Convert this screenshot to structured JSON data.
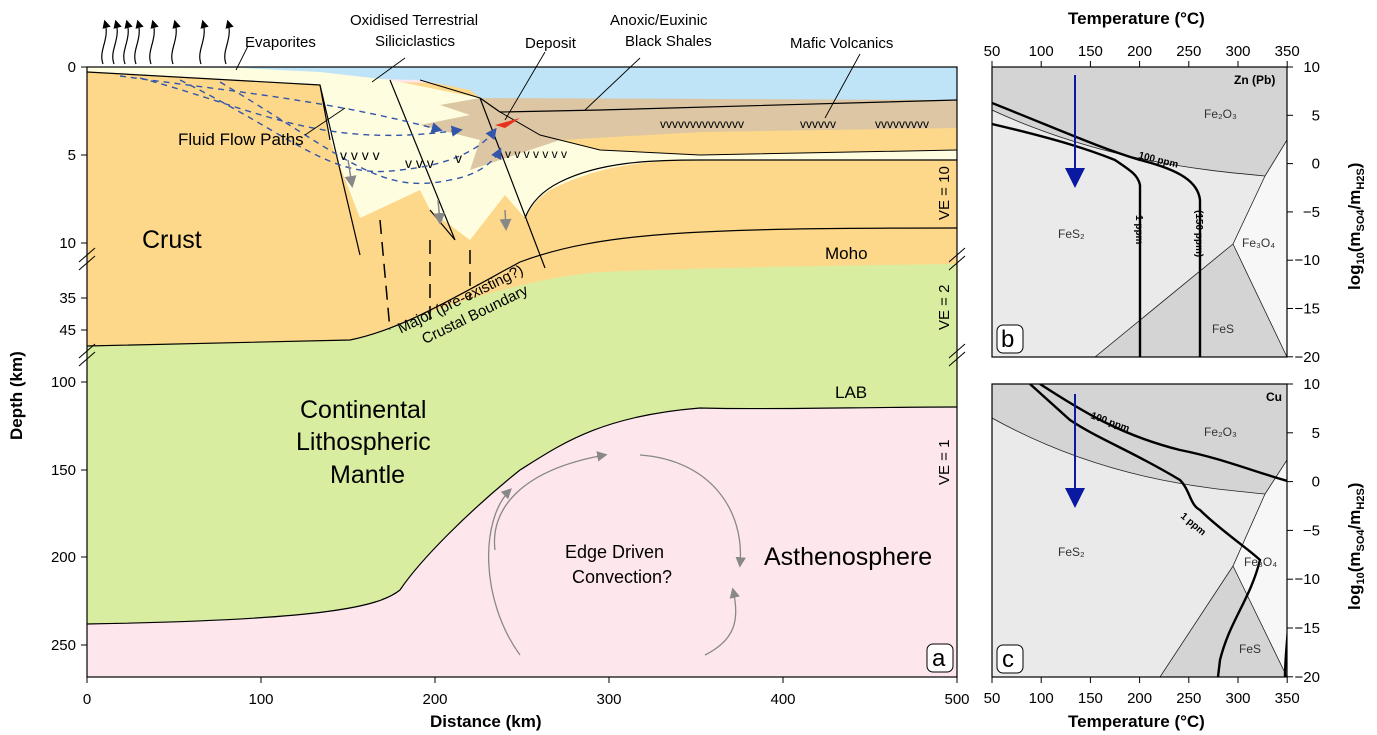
{
  "panel_a": {
    "panel_label": "a",
    "x_axis": {
      "label": "Distance (km)",
      "ticks": [
        "0",
        "100",
        "200",
        "300",
        "400",
        "500"
      ]
    },
    "y_axis": {
      "label": "Depth (km)",
      "ticks": [
        "0",
        "5",
        "10",
        "35",
        "45",
        "100",
        "150",
        "200",
        "250"
      ]
    },
    "labels": {
      "evaporites": "Evaporites",
      "oxidised_line1": "Oxidised Terrestrial",
      "oxidised_line2": "Siliciclastics",
      "deposit": "Deposit",
      "anoxic_line1": "Anoxic/Euxinic",
      "anoxic_line2": "Black Shales",
      "mafic": "Mafic Volcanics",
      "fluid_flow": "Fluid Flow Paths",
      "crust": "Crust",
      "moho": "Moho",
      "boundary_line1": "Major (pre-existing?)",
      "boundary_line2": "Crustal Boundary",
      "lab": "LAB",
      "mantle_line1": "Continental",
      "mantle_line2": "Lithospheric",
      "mantle_line3": "Mantle",
      "edge_line1": "Edge Driven",
      "edge_line2": "Convection?",
      "asthenosphere": "Asthenosphere",
      "ve10": "VE = 10",
      "ve2": "VE = 2",
      "ve1": "VE = 1"
    },
    "colors": {
      "crust": "#fdd88a",
      "mantle": "#d9eda0",
      "asthenosphere": "#fde6ec",
      "sea": "#bfe3f7",
      "sediment": "#fffde0",
      "shale": "#dcc6a3",
      "fluid": "#3355aa",
      "deposit": "#e8301a"
    }
  },
  "panel_b": {
    "panel_label": "b",
    "title": "Zn (Pb)",
    "top_axis": {
      "label": "Temperature (°C)",
      "ticks": [
        "50",
        "100",
        "150",
        "200",
        "250",
        "300",
        "350"
      ]
    },
    "right_axis": {
      "ticks": [
        "10",
        "5",
        "0",
        "−5",
        "−10",
        "−15",
        "−20"
      ]
    },
    "phases": {
      "fe2o3": "Fe₂O₃",
      "fes2": "FeS₂",
      "fe3o4": "Fe₃O₄",
      "fes": "FeS"
    },
    "isolines": [
      "100 ppm",
      "(150 ppm)",
      "1 ppm"
    ]
  },
  "panel_c": {
    "panel_label": "c",
    "title": "Cu",
    "bottom_axis": {
      "label": "Temperature (°C)",
      "ticks": [
        "50",
        "100",
        "150",
        "200",
        "250",
        "300",
        "350"
      ]
    },
    "right_axis": {
      "ticks": [
        "10",
        "5",
        "0",
        "−5",
        "−10",
        "−15",
        "−20"
      ]
    },
    "phases": {
      "fe2o3": "Fe₂O₃",
      "fes2": "FeS₂",
      "fe3o4": "Fe₃O₄",
      "fes": "FeS"
    },
    "isolines": [
      "100 ppm",
      "1 ppm"
    ]
  },
  "right_axis_label": "log₁₀(m_SO4/m_H2S)"
}
